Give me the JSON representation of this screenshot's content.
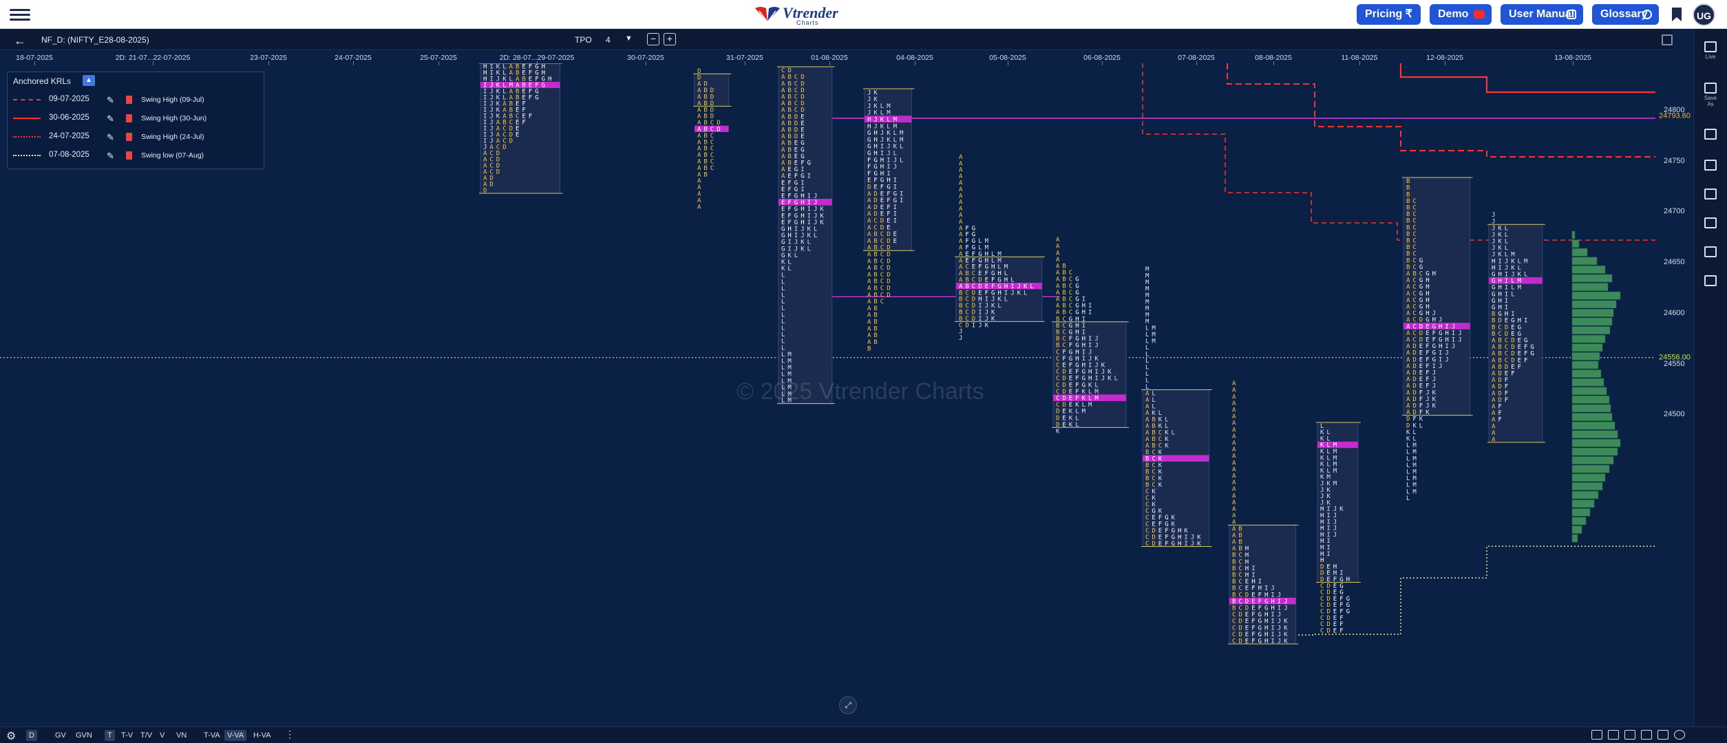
{
  "brand": {
    "logo_text": "Vtrender",
    "logo_sub": "Charts"
  },
  "nav": {
    "pricing": "Pricing ₹",
    "demo": "Demo",
    "user_manual": "User Manual",
    "glossary": "Glossary",
    "avatar": "UG"
  },
  "toolbar": {
    "symbol": "NF_D: (NIFTY_E28-08-2025)",
    "tpo_label": "TPO",
    "tpo_value": "4",
    "zoom_out": "−",
    "zoom_in": "+"
  },
  "rail": {
    "live": "Live",
    "save_as": "Save As"
  },
  "watermark": "© 2025 Vtrender Charts",
  "krl_panel": {
    "title": "Anchored KRLs",
    "rows": [
      {
        "date": "09-07-2025",
        "desc": "Swing High (09-Jul)",
        "style": "dashed",
        "color": "#ff3333"
      },
      {
        "date": "30-06-2025",
        "desc": "Swing High (30-Jun)",
        "style": "solid",
        "color": "#ff3333"
      },
      {
        "date": "24-07-2025",
        "desc": "Swing High (24-Jul)",
        "style": "dotted",
        "color": "#ff3333"
      },
      {
        "date": "07-08-2025",
        "desc": "Swing low (07-Aug)",
        "style": "dotted",
        "color": "#e8f080"
      }
    ]
  },
  "dates": [
    "18-07-2025",
    "2D: 21-07...22-07-2025",
    "23-07-2025",
    "24-07-2025",
    "25-07-2025",
    "2D: 28-07...29-07-2025",
    "30-07-2025",
    "31-07-2025",
    "01-08-2025",
    "04-08-2025",
    "05-08-2025",
    "06-08-2025",
    "07-08-2025",
    "08-08-2025",
    "11-08-2025",
    "12-08-2025",
    "13-08-2025"
  ],
  "price_axis": {
    "ticks": [
      "24800",
      "24750",
      "24700",
      "24650",
      "24600",
      "24550",
      "24500"
    ],
    "tag_high": "24793.60",
    "tag_low": "24556.00",
    "tag_high_color": "#ffb020",
    "tag_low_color": "#c8e040"
  },
  "chart_data": {
    "type": "table",
    "title": "",
    "instrument": "NIFTY_E28-08-2025",
    "tpo_size": 4,
    "price_ticks": [
      24800,
      24750,
      24700,
      24650,
      24600,
      24550,
      24500
    ],
    "marked_levels": [
      24793.6,
      24556.0
    ],
    "sessions": [
      {
        "date": "2D: 28-07...29-07-2025",
        "rows": [
          "H I K L A B E F G H",
          "H I K L A B E F G H",
          "H I J K L A B E F G H",
          "I J K L M A B E F G",
          "I J K L A B E F G",
          "I J K L A B E F G",
          "I J K A B E F",
          "I J K A B E F",
          "I J K A B C E F",
          "I J A B C E F",
          "I J A C D E",
          "I J A C D E",
          "I J A C D",
          "J A C D",
          "A C D",
          "A C D",
          "A C D",
          "A C D",
          "A D",
          "A D",
          "D"
        ],
        "poc_row": 3,
        "vah_row": 0,
        "val_row": 20
      },
      {
        "date": "31-07-2025",
        "rows": [
          "D",
          "D",
          "A D",
          "A B D",
          "A B D",
          "A B D",
          "A B D",
          "A B D",
          "A B C D",
          "A B C D",
          "A B C",
          "A B C",
          "A B C",
          "A B C",
          "A B C",
          "A B C",
          "A B",
          "A",
          "A",
          "A",
          "A",
          "A"
        ],
        "poc_row": 9,
        "vah_row": 1,
        "val_row": 5
      },
      {
        "date": "01-08-2025",
        "rows": [
          "C D",
          "A B C D",
          "A B C D",
          "A B C D",
          "A B C D",
          "A B C D",
          "A B C D",
          "A B D E",
          "A B D E",
          "A B D E",
          "A B D E",
          "A B E G",
          "A B E G",
          "A B E G",
          "A B E F G",
          "A E G I",
          "A E F G I",
          "E F G I",
          "E F G I",
          "E F G H I J",
          "E F G H I J",
          "E F G H I J K",
          "E F G H I J K",
          "E F G H I J K",
          "G H I J K L",
          "G H I J K L",
          "G I J K L",
          "G I J K L",
          "G K L",
          "K L",
          "K L",
          "L",
          "L",
          "L",
          "L",
          "L",
          "L",
          "L",
          "L",
          "L",
          "L",
          "L",
          "L",
          "L M",
          "L M",
          "L M",
          "L M",
          "L M",
          "L M",
          "L M",
          "L M"
        ],
        "poc_row": 20,
        "vah_row": 0,
        "val_row": 50
      },
      {
        "date": "04-08-2025",
        "rows": [
          "J K",
          "J K",
          "J K L M",
          "J K L M",
          "H J K L M",
          "H J K L M",
          "G H J K L M",
          "G H J K L M",
          "G H I J K L",
          "G H I J L",
          "F G H I J L",
          "F G H I J",
          "F G H I",
          "E F G H I",
          "D E F G I",
          "A D E F G I",
          "A D E F G I",
          "A D E F I",
          "A D E F I",
          "A C D E I",
          "A C D E",
          "A B C D E",
          "A B C D E",
          "A B C D",
          "A B C D",
          "A B C D",
          "A B C D",
          "A B C D",
          "A B C D",
          "A B C D",
          "A B C D",
          "A B C",
          "A B",
          "A B",
          "A B",
          "A B",
          "A B",
          "A B",
          "B"
        ],
        "poc_row": 4,
        "vah_row": 0,
        "val_row": 23
      },
      {
        "date": "05-08-2025",
        "rows": [
          "A",
          "A",
          "A",
          "A",
          "A",
          "A",
          "A",
          "A",
          "A",
          "A",
          "A",
          "A F G",
          "A F G",
          "A F G L M",
          "A F G L M",
          "A E F G H L M",
          "A E F G H L M",
          "A C E F G H L M",
          "A B C E F G H L",
          "A B C D E F G H L",
          "A B C D E F G H I J K L",
          "B C D E F G H I J K L",
          "B C D H I J K L",
          "B C D I J K L",
          "B C D I J K",
          "B C D I J K",
          "C D I J K",
          "J",
          "J"
        ],
        "poc_row": 20,
        "vah_row": 16,
        "val_row": 25
      },
      {
        "date": "06-08-2025",
        "rows": [
          "A",
          "A",
          "A",
          "A",
          "A B",
          "A B C",
          "A B C G",
          "A B C G",
          "A B C G",
          "A B C G I",
          "A B C G H I",
          "A B C G H I",
          "B C G H I",
          "B C G H I",
          "B C G H I",
          "B C F G H I J",
          "B C F G H I J",
          "C F G H I J",
          "C F G H I J K",
          "C E F G H I J K",
          "C D E F G H I J K",
          "C D E F G H I J K L",
          "C D E F G K L",
          "C D E F K L M",
          "C D E F K L M",
          "C D E K L M",
          "D E K L M",
          "D E K L",
          "D E K L",
          "K"
        ],
        "poc_row": 24,
        "vah_row": 13,
        "val_row": 28
      },
      {
        "date": "07-08-2025",
        "rows": [
          "M",
          "M",
          "M",
          "M",
          "M",
          "M",
          "M",
          "M",
          "M",
          "L M",
          "L M",
          "L M",
          "L",
          "L",
          "L",
          "L",
          "L",
          "L",
          "L",
          "A L",
          "A L",
          "A L",
          "A K L",
          "A B K L",
          "A B K L",
          "A B C K L",
          "A B C K",
          "A B C K",
          "B C K",
          "B C K",
          "B C K",
          "B C K",
          "B C K",
          "B C K",
          "C K",
          "C K",
          "C K",
          "C G K",
          "C E F G K",
          "C E F G K",
          "C D E F G H K",
          "C D E F G H I J K",
          "C D E F G H I J K"
        ],
        "poc_row": 29,
        "vah_row": 19,
        "val_row": 42
      },
      {
        "date": "08-08-2025",
        "rows": [
          "A",
          "A",
          "A",
          "A",
          "A",
          "A",
          "A",
          "A",
          "A",
          "A",
          "A",
          "A",
          "A",
          "A",
          "A",
          "A",
          "A",
          "A",
          "A",
          "A",
          "A",
          "A",
          "A B",
          "A B",
          "A B",
          "A B H",
          "B C H",
          "B C H",
          "B C H I",
          "B C H I",
          "B C E H I",
          "B C E F H I J",
          "B C D E F H I J",
          "B C D E F G H I J",
          "B C D E F G H I J",
          "C D E F G H I J",
          "C D E F G H I J K",
          "C D E F G H I J K",
          "C D E F G H I J K",
          "C D E F G H I J K"
        ],
        "poc_row": 33,
        "vah_row": 22,
        "val_row": 39
      },
      {
        "date": "11-08-2025",
        "rows": [
          "L",
          "K L",
          "K L",
          "K L M",
          "K L M",
          "K L M",
          "K L M",
          "K L M",
          "K M",
          "J K M",
          "J K",
          "J K",
          "J K",
          "H I J K",
          "H I J",
          "H I J",
          "H I J",
          "H I J",
          "H I",
          "H I",
          "H I",
          "H",
          "D E H",
          "D E H I",
          "D E F G H",
          "C D E G",
          "C D E G",
          "C D E F G",
          "C D E F G",
          "C D E F G",
          "C D E F",
          "C D E F",
          "C D E F"
        ],
        "poc_row": 3,
        "vah_row": 0,
        "val_row": 24
      },
      {
        "date": "12-08-2025",
        "rows": [
          "B",
          "B",
          "B",
          "B C",
          "B C",
          "B C",
          "B C",
          "B C",
          "B C",
          "B C",
          "B C",
          "B C",
          "B C G",
          "B C G",
          "A B C G H",
          "A C G H",
          "A C G H",
          "A C G H",
          "A C G H",
          "A C G H",
          "A C G H J",
          "A C D G H J",
          "A C D E G H I J",
          "A C D E F G H I J",
          "A C D E F G H I J",
          "A D E F G H I J",
          "A D E F G I J",
          "A D E F G I J",
          "A D E F I J",
          "A D E F J",
          "A D E F J",
          "A D E F J",
          "A D F J K",
          "A D F J K",
          "A D F J K",
          "A D F K",
          "D F K",
          "D K L",
          "K L",
          "K L",
          "L M",
          "L M",
          "L M",
          "L M",
          "L M",
          "L M",
          "L M",
          "L M",
          "L"
        ],
        "poc_row": 22,
        "vah_row": 0,
        "val_row": 35
      },
      {
        "date": "13-08-2025",
        "rows": [
          "J",
          "J",
          "J K L",
          "J K L",
          "J K L",
          "J K L",
          "J K L M",
          "H I J K L M",
          "H I J K L",
          "G H I J K L",
          "G H I L M",
          "G H I L M",
          "G H I L",
          "G H I",
          "G H I",
          "B G H I",
          "B D E G H I",
          "B C D E G",
          "B C D E G",
          "A B C D E G",
          "A B C D E F G",
          "A B C D E F G",
          "A B C D E F",
          "A B D E F",
          "A D E F",
          "A D F",
          "A D F",
          "A D F",
          "A D F",
          "A F",
          "A F",
          "A F",
          "A",
          "A",
          "A"
        ],
        "poc_row": 10,
        "vah_row": 2,
        "val_row": 34
      }
    ]
  }
}
